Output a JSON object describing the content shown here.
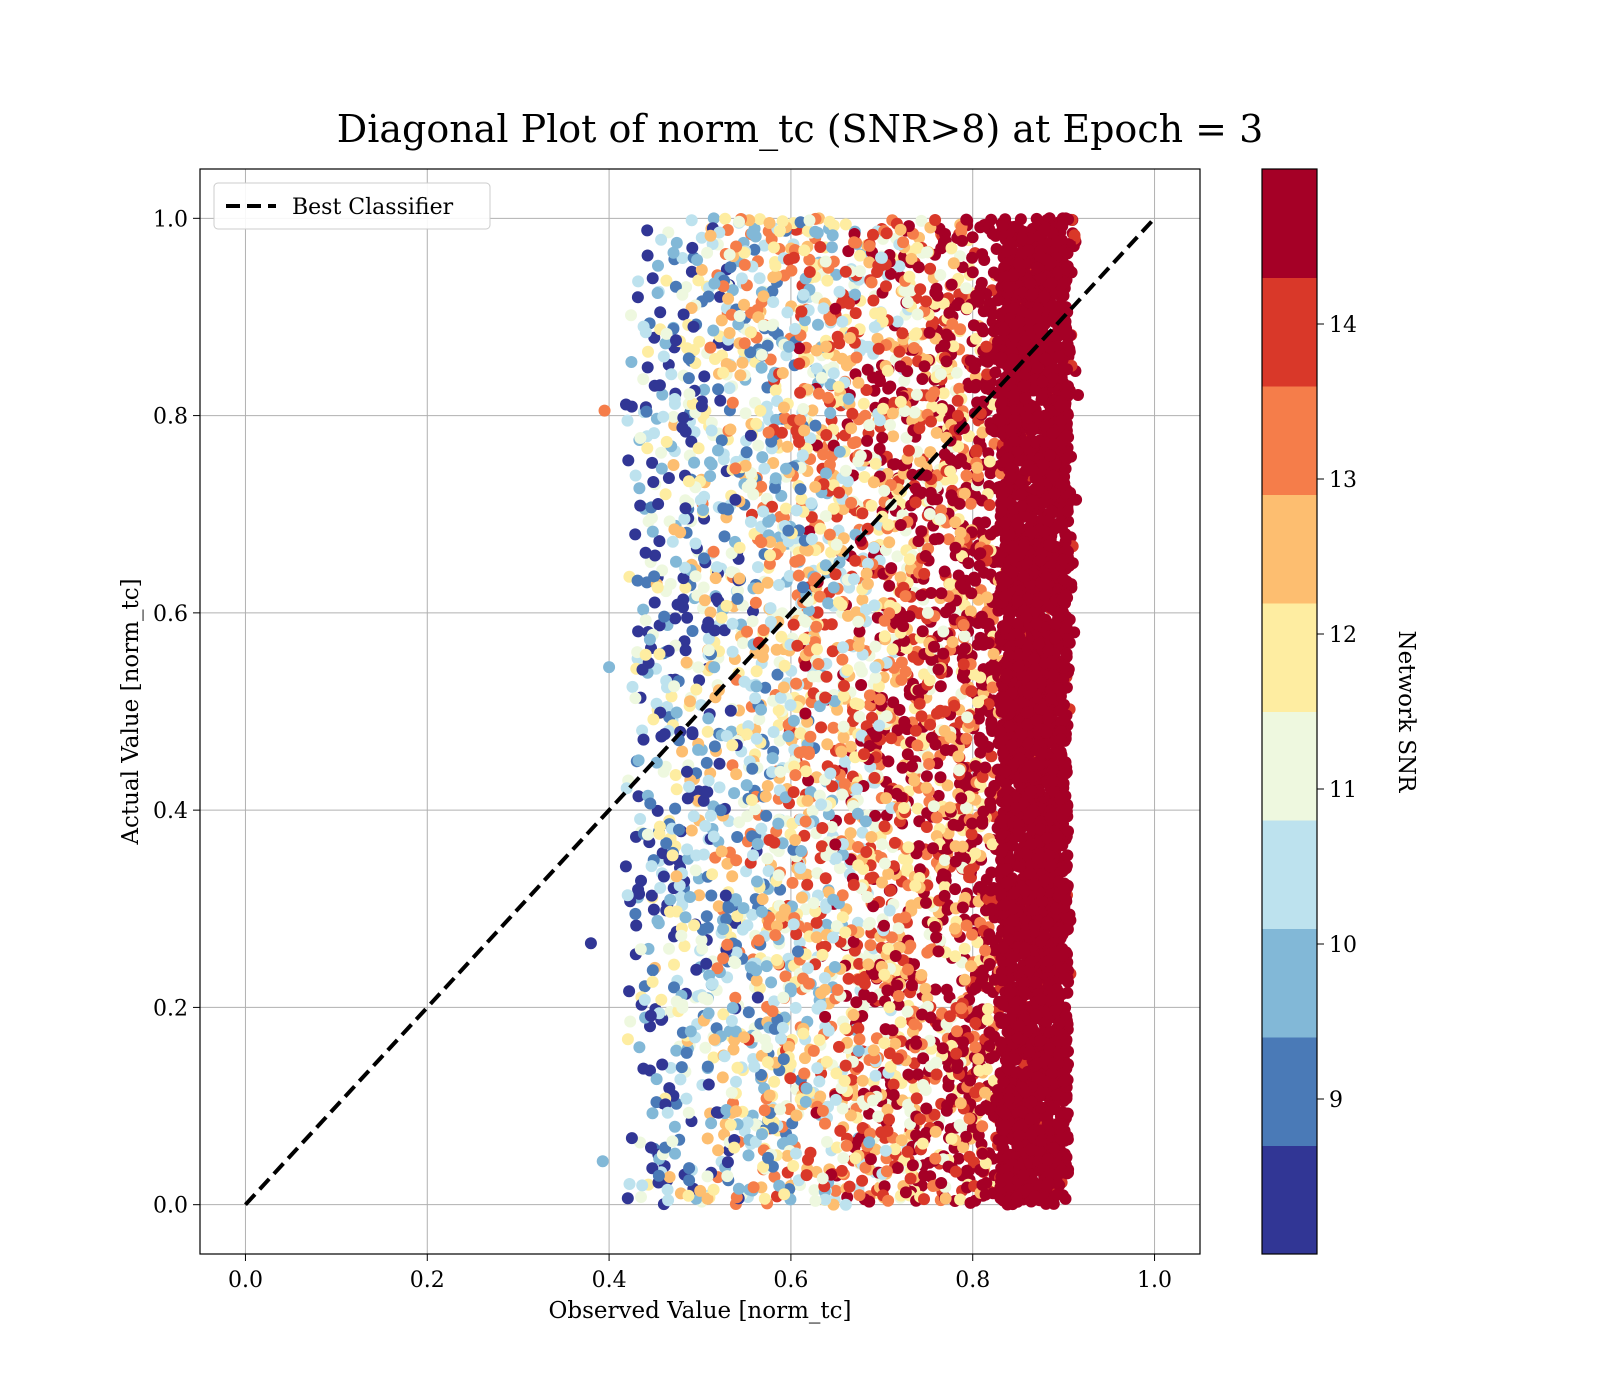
{
  "chart_data": {
    "type": "scatter",
    "title": "Diagonal Plot of norm_tc (SNR>8) at Epoch = 3",
    "xlabel": "Observed Value [norm_tc]",
    "ylabel": "Actual Value [norm_tc]",
    "xlim": [
      -0.05,
      1.05
    ],
    "ylim": [
      -0.05,
      1.05
    ],
    "x_ticks": [
      "0.0",
      "0.2",
      "0.4",
      "0.6",
      "0.8",
      "1.0"
    ],
    "y_ticks": [
      "0.0",
      "0.2",
      "0.4",
      "0.6",
      "0.8",
      "1.0"
    ],
    "grid": true,
    "legend": {
      "placement": "top-left",
      "entries": [
        "Best Classifier"
      ]
    },
    "reference_line": {
      "name": "Best Classifier",
      "x": [
        0,
        1
      ],
      "y": [
        0,
        1
      ],
      "style": "dashed",
      "color": "#000000"
    },
    "colorbar": {
      "label": "Network SNR",
      "range": [
        8,
        15
      ],
      "ticks": [
        "9",
        "10",
        "11",
        "12",
        "13",
        "14"
      ],
      "bands": [
        {
          "from": 8.0,
          "to": 8.7,
          "color": "#313695"
        },
        {
          "from": 8.7,
          "to": 9.4,
          "color": "#4a7ab7"
        },
        {
          "from": 9.4,
          "to": 10.1,
          "color": "#82b8d7"
        },
        {
          "from": 10.1,
          "to": 10.8,
          "color": "#bde2ee"
        },
        {
          "from": 10.8,
          "to": 11.5,
          "color": "#eef8df"
        },
        {
          "from": 11.5,
          "to": 12.2,
          "color": "#feeda1"
        },
        {
          "from": 12.2,
          "to": 12.9,
          "color": "#fdbe70"
        },
        {
          "from": 12.9,
          "to": 13.6,
          "color": "#f57d4a"
        },
        {
          "from": 13.6,
          "to": 14.3,
          "color": "#d93829"
        },
        {
          "from": 14.3,
          "to": 15.0,
          "color": "#a50026"
        }
      ]
    },
    "scatter_region": {
      "x_min": 0.4,
      "x_max": 0.93,
      "y_min": 0.0,
      "y_max": 1.0,
      "dense_high_snr_x_from": 0.82,
      "outliers": [
        {
          "x": 0.38,
          "y": 0.265,
          "snr": 8.3
        },
        {
          "x": 0.4,
          "y": 0.545,
          "snr": 9.8
        },
        {
          "x": 0.395,
          "y": 0.805,
          "snr": 12.9
        },
        {
          "x": 0.393,
          "y": 0.044,
          "snr": 9.8
        }
      ]
    }
  }
}
